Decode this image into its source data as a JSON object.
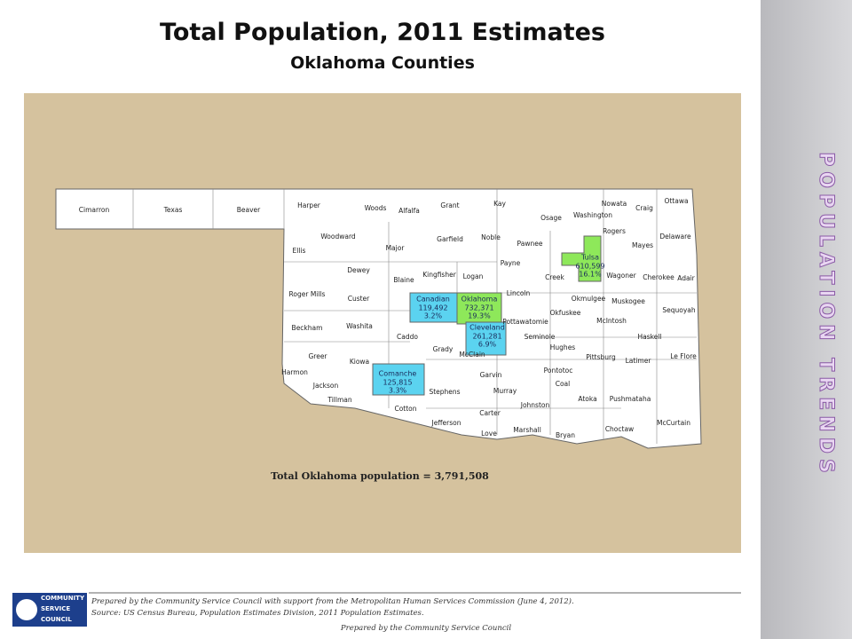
{
  "header": {
    "title": "Total Population, 2011 Estimates",
    "subtitle": "Oklahoma Counties"
  },
  "side_title": "POPULATION TRENDS",
  "map": {
    "counties": [
      "Cimarron",
      "Texas",
      "Beaver",
      "Harper",
      "Woods",
      "Alfalfa",
      "Grant",
      "Kay",
      "Osage",
      "Nowata",
      "Craig",
      "Ottawa",
      "Washington",
      "Rogers",
      "Delaware",
      "Mayes",
      "Ellis",
      "Woodward",
      "Major",
      "Garfield",
      "Noble",
      "Pawnee",
      "Dewey",
      "Blaine",
      "Kingfisher",
      "Logan",
      "Payne",
      "Creek",
      "Wagoner",
      "Cherokee",
      "Adair",
      "Roger Mills",
      "Custer",
      "Lincoln",
      "Okmulgee",
      "Muskogee",
      "Okfuskee",
      "McIntosh",
      "Sequoyah",
      "Beckham",
      "Washita",
      "Caddo",
      "Pottawatomie",
      "Seminole",
      "Haskell",
      "Greer",
      "Grady",
      "McClain",
      "Hughes",
      "Pittsburg",
      "Latimer",
      "Le Flore",
      "Harmon",
      "Kiowa",
      "Jackson",
      "Tillman",
      "Cotton",
      "Stephens",
      "Garvin",
      "Pontotoc",
      "Murray",
      "Coal",
      "Atoka",
      "Pushmataha",
      "Johnston",
      "Carter",
      "Jefferson",
      "McCurtain",
      "Choctaw",
      "Love",
      "Marshall",
      "Bryan"
    ],
    "highlighted": [
      {
        "name": "Canadian",
        "population": "119,492",
        "share": "3.2%",
        "color": "#5bd3f0"
      },
      {
        "name": "Oklahoma",
        "population": "732,371",
        "share": "19.3%",
        "color": "#8ee85a"
      },
      {
        "name": "Cleveland",
        "population": "261,281",
        "share": "6.9%",
        "color": "#5bd3f0"
      },
      {
        "name": "Tulsa",
        "population": "610,599",
        "share": "16.1%",
        "color": "#8ee85a"
      },
      {
        "name": "Comanche",
        "population": "125,815",
        "share": "3.3%",
        "color": "#5bd3f0"
      }
    ],
    "total_label": "Total Oklahoma population = 3,791,508"
  },
  "footer": {
    "logo_text": [
      "COMMUNITY",
      "SERVICE",
      "COUNCIL"
    ],
    "note": "Prepared by the Community Service Council with support from the Metropolitan Human Services Commission (June 4, 2012).",
    "source": "Source: US Census Bureau, Population Estimates Division, 2011 Population Estimates.",
    "prepared_by": "Prepared by the Community Service Council"
  }
}
